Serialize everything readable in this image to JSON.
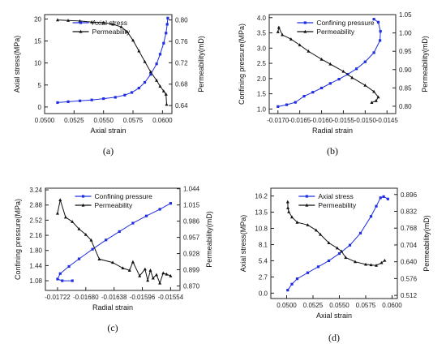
{
  "colors": {
    "blue": "#1f2ee0",
    "black": "#111111"
  },
  "chart_data": [
    {
      "caption": "(a)",
      "type": "line",
      "xlabel": "Axial strain",
      "ylabel_left": "Axial stress(MPa)",
      "ylabel_right": "Permeability(mD)",
      "xlim": [
        0.05,
        0.0608
      ],
      "ylim_left": [
        -1.5,
        21
      ],
      "ylim_right": [
        0.625,
        0.81
      ],
      "x_ticks": [
        "0.0500",
        "0.0525",
        "0.0550",
        "0.0575",
        "0.0600"
      ],
      "x_tick_values": [
        0.05,
        0.0525,
        0.055,
        0.0575,
        0.06
      ],
      "y_left_ticks": [
        "0",
        "5",
        "10",
        "15",
        "20"
      ],
      "y_left_tick_values": [
        0,
        5,
        10,
        15,
        20
      ],
      "y_right_ticks": [
        "0.64",
        "0.68",
        "0.72",
        "0.76",
        "0.80"
      ],
      "y_right_tick_values": [
        0.64,
        0.68,
        0.72,
        0.76,
        0.8
      ],
      "legend_position": "top-center",
      "series": [
        {
          "name": "Axial stress",
          "axis": "left",
          "color": "#1f2ee0",
          "marker": "square",
          "x": [
            0.0511,
            0.052,
            0.053,
            0.054,
            0.055,
            0.056,
            0.0568,
            0.0574,
            0.058,
            0.0585,
            0.059,
            0.0595,
            0.0598,
            0.0601,
            0.0603,
            0.0604,
            0.06045
          ],
          "y": [
            1.0,
            1.2,
            1.4,
            1.6,
            1.9,
            2.2,
            2.7,
            3.3,
            4.3,
            5.6,
            7.4,
            9.8,
            12.0,
            14.5,
            16.8,
            18.8,
            20.2
          ]
        },
        {
          "name": "Permeability",
          "axis": "right",
          "color": "#111111",
          "marker": "triangle",
          "x": [
            0.0511,
            0.052,
            0.053,
            0.054,
            0.055,
            0.0558,
            0.0565,
            0.057,
            0.0575,
            0.058,
            0.0585,
            0.059,
            0.0595,
            0.0598,
            0.0601,
            0.0603,
            0.06035
          ],
          "y": [
            0.8,
            0.799,
            0.798,
            0.796,
            0.795,
            0.792,
            0.787,
            0.778,
            0.762,
            0.742,
            0.722,
            0.703,
            0.687,
            0.676,
            0.667,
            0.661,
            0.642
          ]
        }
      ]
    },
    {
      "caption": "(b)",
      "type": "line",
      "xlabel": "Radial strain",
      "ylabel_left": "Confining pressure(MPa)",
      "ylabel_right": "Permeability(mD)",
      "xlim": [
        -0.0172,
        -0.0143
      ],
      "ylim_left": [
        0.85,
        4.1
      ],
      "ylim_right": [
        0.78,
        1.05
      ],
      "x_ticks": [
        "-0.0170",
        "-0.0165",
        "-0.0160",
        "-0.0155",
        "-0.0150",
        "-0.0145"
      ],
      "x_tick_values": [
        -0.017,
        -0.0165,
        -0.016,
        -0.0155,
        -0.015,
        -0.0145
      ],
      "y_left_ticks": [
        "1.0",
        "1.5",
        "2.0",
        "2.5",
        "3.0",
        "3.5",
        "4.0"
      ],
      "y_left_tick_values": [
        1.0,
        1.5,
        2.0,
        2.5,
        3.0,
        3.5,
        4.0
      ],
      "y_right_ticks": [
        "0.80",
        "0.85",
        "0.90",
        "0.95",
        "1.00",
        "1.05"
      ],
      "y_right_tick_values": [
        0.8,
        0.85,
        0.9,
        0.95,
        1.0,
        1.05
      ],
      "legend_position": "top-center",
      "series": [
        {
          "name": "Confining pressure",
          "axis": "left",
          "color": "#1f2ee0",
          "marker": "square",
          "x": [
            -0.017,
            -0.0168,
            -0.0166,
            -0.0164,
            -0.0162,
            -0.016,
            -0.0158,
            -0.0156,
            -0.0154,
            -0.0152,
            -0.015,
            -0.0148,
            -0.01466,
            -0.01465,
            -0.0147,
            -0.0148
          ],
          "y": [
            1.08,
            1.14,
            1.22,
            1.42,
            1.55,
            1.69,
            1.84,
            1.98,
            2.14,
            2.32,
            2.55,
            2.85,
            3.25,
            3.55,
            3.85,
            3.95
          ]
        },
        {
          "name": "Permeability",
          "axis": "right",
          "color": "#111111",
          "marker": "triangle",
          "x": [
            -0.017,
            -0.01698,
            -0.0169,
            -0.0167,
            -0.0165,
            -0.0163,
            -0.016,
            -0.0158,
            -0.0155,
            -0.0153,
            -0.015,
            -0.0148,
            -0.0147,
            -0.01475,
            -0.01485
          ],
          "y": [
            1.003,
            1.015,
            0.995,
            0.983,
            0.967,
            0.95,
            0.928,
            0.915,
            0.895,
            0.878,
            0.857,
            0.84,
            0.825,
            0.815,
            0.81
          ]
        }
      ]
    },
    {
      "caption": "(c)",
      "type": "line",
      "xlabel": "Radial strain",
      "ylabel_left": "Confining pressure(MPa)",
      "ylabel_right": "Permeability(mD)",
      "xlim": [
        -0.0174,
        -0.0154
      ],
      "ylim_left": [
        0.85,
        3.28
      ],
      "ylim_right": [
        0.862,
        1.045
      ],
      "x_ticks": [
        "-0.01722",
        "-0.01680",
        "-0.01638",
        "-0.01596",
        "-0.01554"
      ],
      "x_tick_values": [
        -0.01722,
        -0.0168,
        -0.01638,
        -0.01596,
        -0.01554
      ],
      "y_left_ticks": [
        "1.08",
        "1.44",
        "1.80",
        "2.16",
        "2.52",
        "2.88",
        "3.24"
      ],
      "y_left_tick_values": [
        1.08,
        1.44,
        1.8,
        2.16,
        2.52,
        2.88,
        3.24
      ],
      "y_right_ticks": [
        "0.870",
        "0.899",
        "0.928",
        "0.957",
        "0.986",
        "1.015",
        "1.044"
      ],
      "y_right_tick_values": [
        0.87,
        0.899,
        0.928,
        0.957,
        0.986,
        1.015,
        1.044
      ],
      "legend_position": "top-center",
      "series": [
        {
          "name": "Confining pressure",
          "axis": "left",
          "color": "#1f2ee0",
          "marker": "square",
          "x": [
            -0.017,
            -0.01715,
            -0.01722,
            -0.01718,
            -0.01705,
            -0.0169,
            -0.0167,
            -0.0165,
            -0.0163,
            -0.0161,
            -0.0159,
            -0.0157,
            -0.01554
          ],
          "y": [
            1.08,
            1.08,
            1.12,
            1.25,
            1.42,
            1.6,
            1.83,
            2.05,
            2.25,
            2.45,
            2.62,
            2.78,
            2.92
          ]
        },
        {
          "name": "Permeability",
          "axis": "right",
          "color": "#111111",
          "marker": "triangle",
          "x": [
            -0.01722,
            -0.01718,
            -0.0171,
            -0.017,
            -0.0169,
            -0.0168,
            -0.01672,
            -0.0166,
            -0.0164,
            -0.01625,
            -0.01615,
            -0.0161,
            -0.016,
            -0.01592,
            -0.01588,
            -0.01584,
            -0.0158,
            -0.01575,
            -0.0157,
            -0.01565,
            -0.0156,
            -0.01554
          ],
          "y": [
            1.0,
            1.024,
            0.993,
            0.985,
            0.972,
            0.962,
            0.952,
            0.918,
            0.912,
            0.902,
            0.898,
            0.913,
            0.888,
            0.9,
            0.88,
            0.898,
            0.884,
            0.89,
            0.875,
            0.893,
            0.891,
            0.888
          ]
        }
      ]
    },
    {
      "caption": "(d)",
      "type": "line",
      "xlabel": "Axial strain",
      "ylabel_left": "Axial stress(MPa)",
      "ylabel_right": "Permeability(mD)",
      "xlim": [
        0.0485,
        0.0605
      ],
      "ylim_left": [
        -0.9,
        17.5
      ],
      "ylim_right": [
        0.5,
        0.92
      ],
      "x_ticks": [
        "0.0500",
        "0.0525",
        "0.0550",
        "0.0575",
        "0.0600"
      ],
      "x_tick_values": [
        0.05,
        0.0525,
        0.055,
        0.0575,
        0.06
      ],
      "y_left_ticks": [
        "0.0",
        "2.7",
        "5.4",
        "8.1",
        "10.8",
        "13.5",
        "16.2"
      ],
      "y_left_tick_values": [
        0,
        2.7,
        5.4,
        8.1,
        10.8,
        13.5,
        16.2
      ],
      "y_right_ticks": [
        "0.512",
        "0.576",
        "0.640",
        "0.704",
        "0.768",
        "0.832",
        "0.896"
      ],
      "y_right_tick_values": [
        0.512,
        0.576,
        0.64,
        0.704,
        0.768,
        0.832,
        0.896
      ],
      "legend_position": "top-center",
      "series": [
        {
          "name": "Axial stress",
          "axis": "left",
          "color": "#1f2ee0",
          "marker": "square",
          "x": [
            0.0501,
            0.0505,
            0.051,
            0.052,
            0.053,
            0.054,
            0.055,
            0.056,
            0.057,
            0.058,
            0.0585,
            0.0589,
            0.0592,
            0.0596
          ],
          "y": [
            0.5,
            1.5,
            2.4,
            3.4,
            4.4,
            5.4,
            6.6,
            8.0,
            10.0,
            12.8,
            14.5,
            15.9,
            16.1,
            15.7
          ]
        },
        {
          "name": "Permeability",
          "axis": "right",
          "color": "#111111",
          "marker": "triangle",
          "x": [
            0.0501,
            0.05012,
            0.0502,
            0.0505,
            0.051,
            0.052,
            0.0528,
            0.0532,
            0.054,
            0.0548,
            0.0552,
            0.0556,
            0.0565,
            0.0575,
            0.058,
            0.0585,
            0.059,
            0.0593
          ],
          "y": [
            0.868,
            0.845,
            0.83,
            0.81,
            0.79,
            0.78,
            0.76,
            0.744,
            0.712,
            0.692,
            0.68,
            0.656,
            0.64,
            0.63,
            0.628,
            0.626,
            0.636,
            0.645
          ]
        }
      ]
    }
  ]
}
